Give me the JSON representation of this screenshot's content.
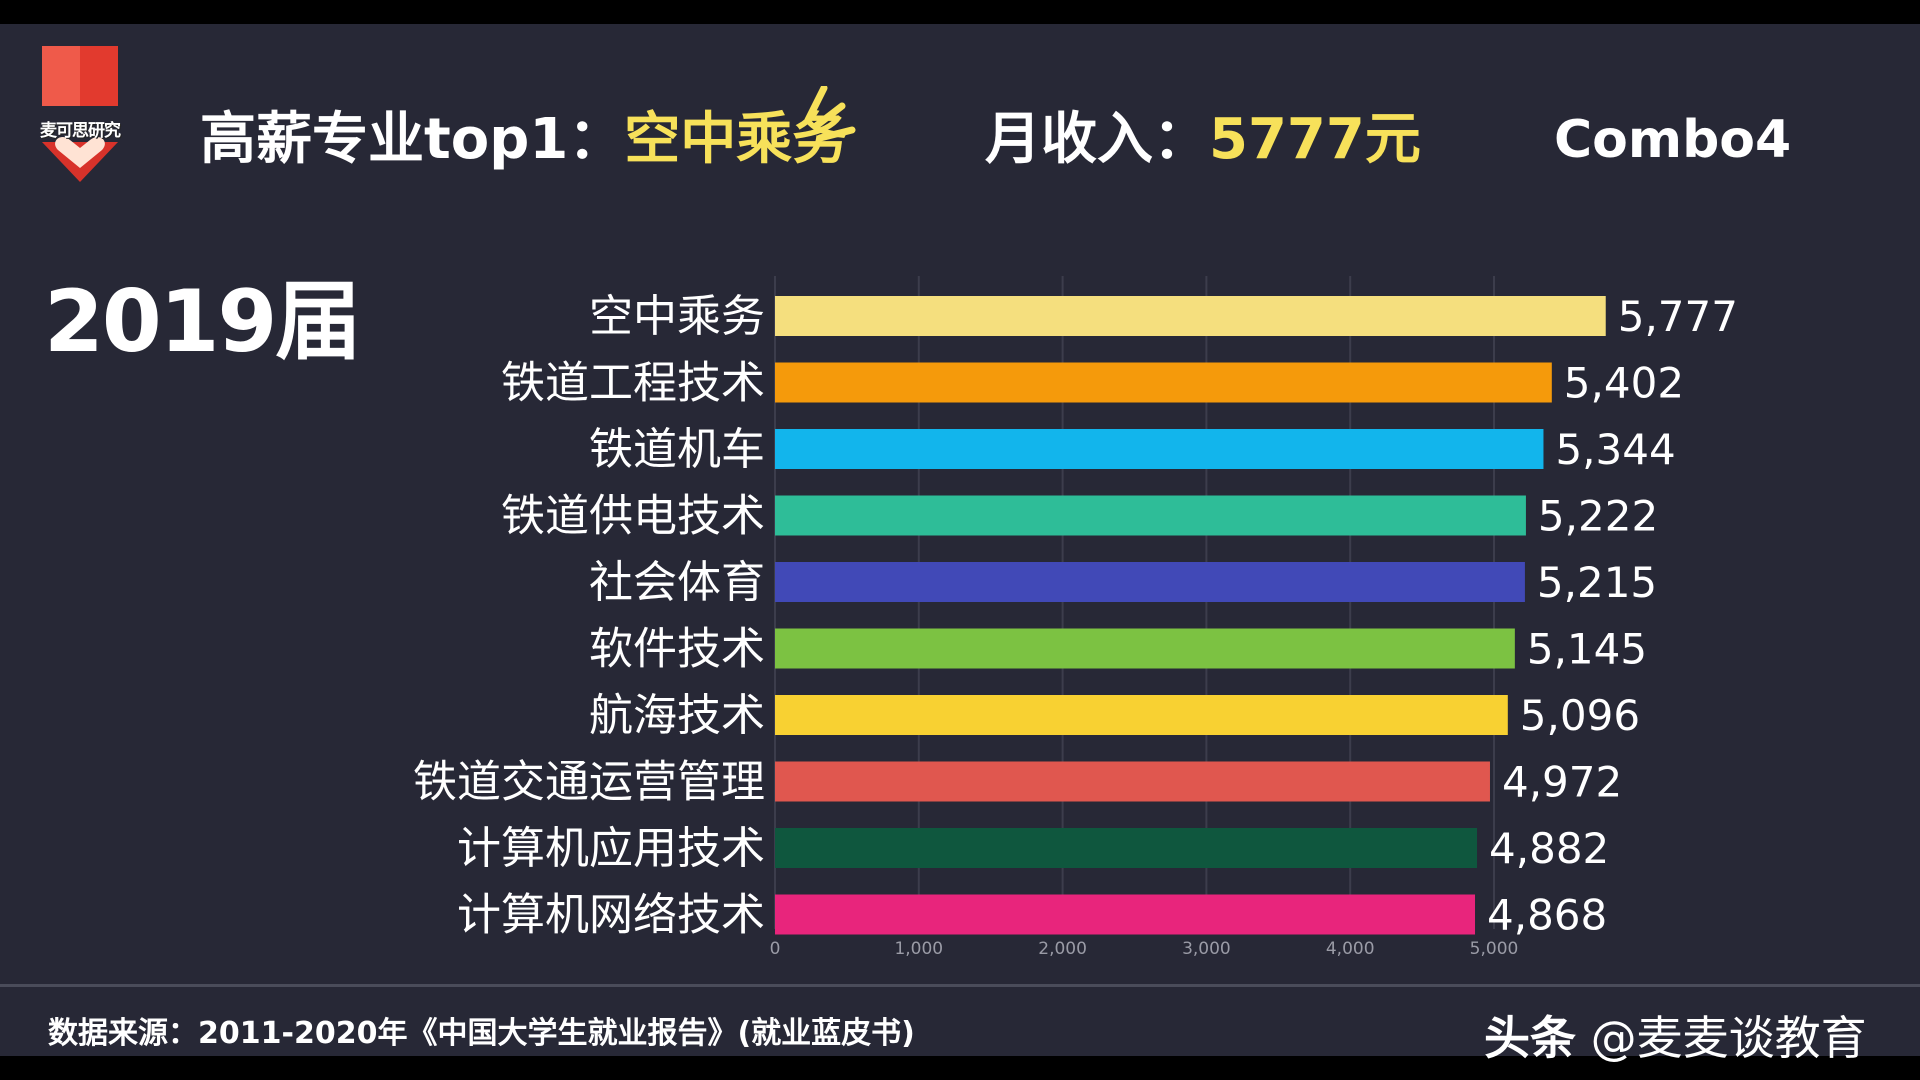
{
  "header": {
    "logo_text": "麦可思研究",
    "title_prefix": "高薪专业top1：",
    "title_highlight": "空中乘务",
    "income_prefix": "月收入：",
    "income_value": "5777元",
    "combo": "Combo4"
  },
  "year_label": "2019届",
  "footer": {
    "source": "数据来源：2011-2020年《中国大学生就业报告》(就业蓝皮书)",
    "brand_prefix": "头条",
    "brand_handle": "@麦麦谈教育"
  },
  "colors": {
    "background": "#272836",
    "highlight": "#f7e15a",
    "grid": "#3c3d4c"
  },
  "chart_data": {
    "type": "bar",
    "orientation": "horizontal",
    "categories": [
      "空中乘务",
      "铁道工程技术",
      "铁道机车",
      "铁道供电技术",
      "社会体育",
      "软件技术",
      "航海技术",
      "铁道交通运营管理",
      "计算机应用技术",
      "计算机网络技术"
    ],
    "values": [
      5777,
      5402,
      5344,
      5222,
      5215,
      5145,
      5096,
      4972,
      4882,
      4868
    ],
    "value_labels": [
      "5,777",
      "5,402",
      "5,344",
      "5,222",
      "5,215",
      "5,145",
      "5,096",
      "4,972",
      "4,882",
      "4,868"
    ],
    "colors": [
      "#f5df7e",
      "#f59a0b",
      "#12b5ec",
      "#2ebd98",
      "#4149b7",
      "#7cc242",
      "#f8d132",
      "#e0574f",
      "#0f573e",
      "#e8257c"
    ],
    "xticks": [
      0,
      1000,
      2000,
      3000,
      4000,
      5000
    ],
    "xtick_labels": [
      "0",
      "1,000",
      "2,000",
      "3,000",
      "4,000",
      "5,000"
    ],
    "xlim": [
      0,
      5800
    ],
    "grid": true,
    "title": "",
    "xlabel": "",
    "ylabel": ""
  }
}
